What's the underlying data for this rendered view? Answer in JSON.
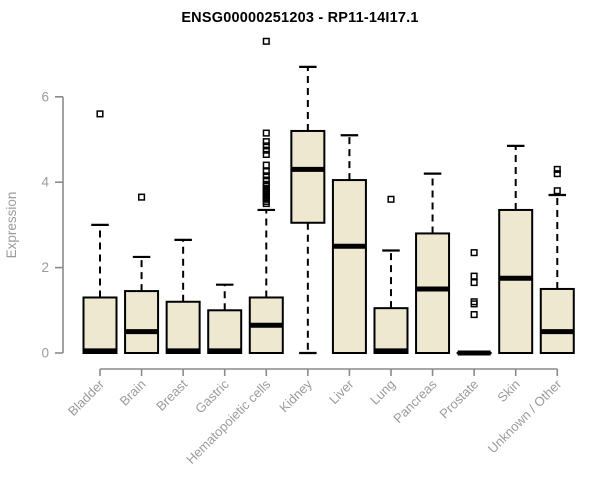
{
  "title": "ENSG00000251203 - RP11-14I17.1",
  "colors": {
    "box_fill": "#EDE8CF",
    "box_border": "#000000",
    "median": "#000000",
    "whisker": "#000000",
    "outlier": "#000000",
    "axis_line": "#8A8A8A",
    "tick_label": "#9B9B9B",
    "title": "#000000",
    "background": "#FFFFFF"
  },
  "chart_data": {
    "type": "boxplot",
    "title": "ENSG00000251203 - RP11-14I17.1",
    "xlabel": "",
    "ylabel": "Expression",
    "ylim": [
      0,
      7.3
    ],
    "yticks": [
      0,
      2,
      4,
      6
    ],
    "grid": false,
    "legend": "none",
    "categories": [
      "Bladder",
      "Brain",
      "Breast",
      "Gastric",
      "Hematopoietic cells",
      "Kidney",
      "Liver",
      "Lung",
      "Pancreas",
      "Prostate",
      "Skin",
      "Unknown / Other"
    ],
    "boxes": [
      {
        "category": "Bladder",
        "whisker_low": 0,
        "q1": 0,
        "median": 0.05,
        "q3": 1.3,
        "whisker_high": 3.0,
        "outliers": [
          5.6
        ]
      },
      {
        "category": "Brain",
        "whisker_low": 0,
        "q1": 0,
        "median": 0.5,
        "q3": 1.45,
        "whisker_high": 2.25,
        "outliers": [
          3.65
        ]
      },
      {
        "category": "Breast",
        "whisker_low": 0,
        "q1": 0,
        "median": 0.05,
        "q3": 1.2,
        "whisker_high": 2.65,
        "outliers": []
      },
      {
        "category": "Gastric",
        "whisker_low": 0,
        "q1": 0,
        "median": 0.05,
        "q3": 1.0,
        "whisker_high": 1.6,
        "outliers": []
      },
      {
        "category": "Hematopoietic cells",
        "whisker_low": 0,
        "q1": 0,
        "median": 0.65,
        "q3": 1.3,
        "whisker_high": 3.35,
        "outliers": [
          3.5,
          3.55,
          3.6,
          3.65,
          3.7,
          3.75,
          3.8,
          3.85,
          3.9,
          3.95,
          4.05,
          4.15,
          4.25,
          4.4,
          4.65,
          4.75,
          4.85,
          4.95,
          5.15,
          7.3
        ]
      },
      {
        "category": "Kidney",
        "whisker_low": 0,
        "q1": 3.05,
        "median": 4.3,
        "q3": 5.2,
        "whisker_high": 6.7,
        "outliers": []
      },
      {
        "category": "Liver",
        "whisker_low": 0,
        "q1": 0,
        "median": 2.5,
        "q3": 4.05,
        "whisker_high": 5.1,
        "outliers": []
      },
      {
        "category": "Lung",
        "whisker_low": 0,
        "q1": 0,
        "median": 0.05,
        "q3": 1.05,
        "whisker_high": 2.4,
        "outliers": [
          3.6
        ]
      },
      {
        "category": "Pancreas",
        "whisker_low": 0,
        "q1": 0,
        "median": 1.5,
        "q3": 2.8,
        "whisker_high": 4.2,
        "outliers": []
      },
      {
        "category": "Prostate",
        "whisker_low": 0,
        "q1": 0,
        "median": 0,
        "q3": 0,
        "whisker_high": 0,
        "outliers": [
          0.9,
          1.15,
          1.2,
          1.65,
          1.8,
          2.35
        ]
      },
      {
        "category": "Skin",
        "whisker_low": 0,
        "q1": 0,
        "median": 1.75,
        "q3": 3.35,
        "whisker_high": 4.85,
        "outliers": []
      },
      {
        "category": "Unknown / Other",
        "whisker_low": 0,
        "q1": 0,
        "median": 0.5,
        "q3": 1.5,
        "whisker_high": 3.7,
        "outliers": [
          3.8,
          4.2,
          4.3
        ]
      }
    ]
  }
}
